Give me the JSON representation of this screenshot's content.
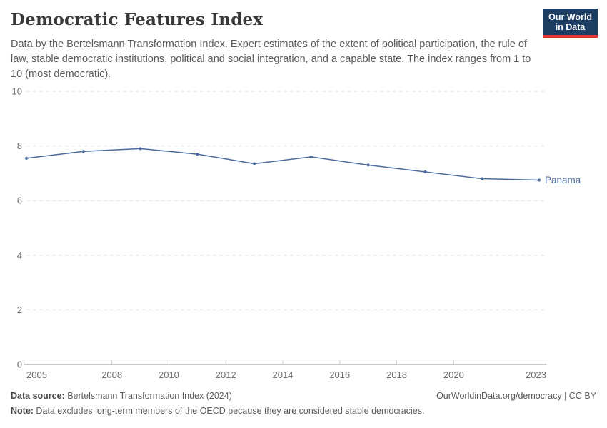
{
  "header": {
    "title": "Democratic Features Index",
    "subtitle": "Data by the Bertelsmann Transformation Index. Expert estimates of the extent of political participation, the rule of law, stable democratic institutions, political and social integration, and a capable state. The index ranges from 1 to 10 (most democratic).",
    "logo": {
      "line1": "Our World",
      "line2": "in Data"
    }
  },
  "chart_data": {
    "type": "line",
    "title": "Democratic Features Index",
    "entity": "Panama",
    "x": [
      2005,
      2007,
      2009,
      2011,
      2013,
      2015,
      2017,
      2019,
      2021,
      2023
    ],
    "values": [
      7.55,
      7.8,
      7.9,
      7.7,
      7.35,
      7.6,
      7.3,
      7.05,
      6.8,
      6.75
    ],
    "xticks": [
      2005,
      2008,
      2010,
      2012,
      2014,
      2016,
      2018,
      2020,
      2023
    ],
    "yticks": [
      0,
      2,
      4,
      6,
      8,
      10
    ],
    "ylim": [
      0,
      10
    ],
    "xlim": [
      2005,
      2023.25
    ],
    "grid": "horizontal-dashed",
    "legend": "inline-end-label"
  },
  "colors": {
    "line": "#4c6a9c",
    "series_label": "#4c6a9c",
    "title": "#383838",
    "body_text": "#5b5b5b",
    "tick_label": "#6e6e6e",
    "axis": "#8d8d8d",
    "tick": "#c8c8c8",
    "gridline": "#dedede",
    "logo_bg": "#1d3d63",
    "logo_stripe": "#dc352c"
  },
  "footer": {
    "source_label": "Data source:",
    "source_text": " Bertelsmann Transformation Index (2024)",
    "link_text": "OurWorldinData.org/democracy | CC BY",
    "note_label": "Note:",
    "note_text": " Data excludes long-term members of the OECD because they are considered stable democracies."
  }
}
